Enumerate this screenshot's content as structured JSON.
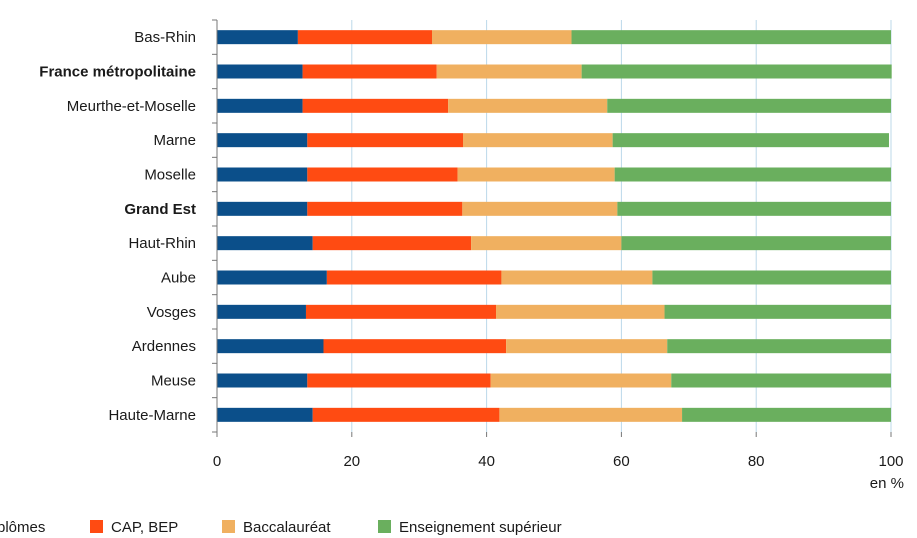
{
  "chart_data": {
    "type": "bar",
    "orientation": "horizontal",
    "stacked": true,
    "categories": [
      "Bas-Rhin",
      "France métropolitaine",
      "Meurthe-et-Moselle",
      "Marne",
      "Moselle",
      "Grand Est",
      "Haut-Rhin",
      "Aube",
      "Vosges",
      "Ardennes",
      "Meuse",
      "Haute-Marne"
    ],
    "bold_categories": [
      "France métropolitaine",
      "Grand Est"
    ],
    "series": [
      {
        "name": "plômes",
        "color": "#0b4f8a",
        "values": [
          12.0,
          12.7,
          12.7,
          13.4,
          13.4,
          13.4,
          14.2,
          16.3,
          13.2,
          15.8,
          13.4,
          14.2
        ]
      },
      {
        "name": "CAP, BEP",
        "color": "#ff4b12",
        "values": [
          19.9,
          19.9,
          21.6,
          23.1,
          22.3,
          23.0,
          23.5,
          25.9,
          28.2,
          27.1,
          27.2,
          27.7
        ]
      },
      {
        "name": "Baccalauréat",
        "color": "#f0b060",
        "values": [
          20.7,
          21.5,
          23.6,
          22.2,
          23.3,
          23.0,
          22.3,
          22.4,
          25.0,
          23.9,
          26.8,
          27.1
        ]
      },
      {
        "name": "Enseignement supérieur",
        "color": "#6aaf5e",
        "values": [
          47.4,
          46.0,
          42.1,
          41.0,
          41.0,
          40.6,
          40.0,
          35.4,
          33.6,
          33.2,
          32.6,
          31.0
        ]
      }
    ],
    "xlim": [
      0,
      100
    ],
    "xticks": [
      "0",
      "20",
      "40",
      "60",
      "80",
      "100"
    ],
    "xlabel": "en %",
    "grid": "vertical",
    "legend_position": "bottom"
  }
}
